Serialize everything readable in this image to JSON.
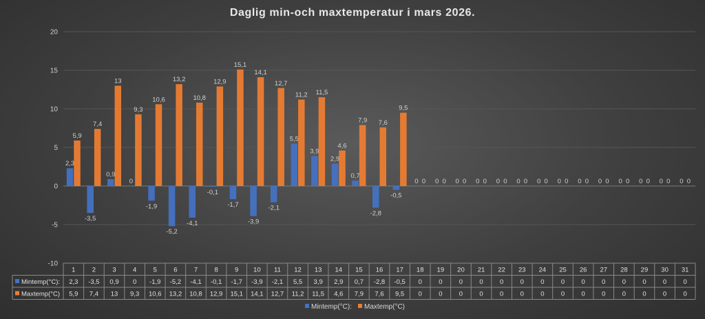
{
  "chart_data": {
    "type": "bar",
    "title": "Daglig min-och maxtemperatur i mars 2026.",
    "categories": [
      "1",
      "2",
      "3",
      "4",
      "5",
      "6",
      "7",
      "8",
      "9",
      "10",
      "11",
      "12",
      "13",
      "14",
      "15",
      "16",
      "17",
      "18",
      "19",
      "20",
      "21",
      "22",
      "23",
      "24",
      "25",
      "26",
      "27",
      "28",
      "29",
      "30",
      "31"
    ],
    "series": [
      {
        "name": "Mintemp(°C):",
        "color": "#4472c4",
        "values": [
          2.3,
          -3.5,
          0.9,
          0,
          -1.9,
          -5.2,
          -4.1,
          -0.1,
          -1.7,
          -3.9,
          -2.1,
          5.5,
          3.9,
          2.9,
          0.7,
          -2.8,
          -0.5,
          0,
          0,
          0,
          0,
          0,
          0,
          0,
          0,
          0,
          0,
          0,
          0,
          0,
          0
        ],
        "labels": [
          "2,3",
          "-3,5",
          "0,9",
          "0",
          "-1,9",
          "-5,2",
          "-4,1",
          "-0,1",
          "-1,7",
          "-3,9",
          "-2,1",
          "5,5",
          "3,9",
          "2,9",
          "0,7",
          "-2,8",
          "-0,5",
          "0",
          "0",
          "0",
          "0",
          "0",
          "0",
          "0",
          "0",
          "0",
          "0",
          "0",
          "0",
          "0",
          "0"
        ]
      },
      {
        "name": "Maxtemp(°C)",
        "color": "#ed7d31",
        "values": [
          5.9,
          7.4,
          13,
          9.3,
          10.6,
          13.2,
          10.8,
          12.9,
          15.1,
          14.1,
          12.7,
          11.2,
          11.5,
          4.6,
          7.9,
          7.6,
          9.5,
          0,
          0,
          0,
          0,
          0,
          0,
          0,
          0,
          0,
          0,
          0,
          0,
          0,
          0
        ],
        "labels": [
          "5,9",
          "7,4",
          "13",
          "9,3",
          "10,6",
          "13,2",
          "10,8",
          "12,9",
          "15,1",
          "14,1",
          "12,7",
          "11,2",
          "11,5",
          "4,6",
          "7,9",
          "7,6",
          "9,5",
          "0",
          "0",
          "0",
          "0",
          "0",
          "0",
          "0",
          "0",
          "0",
          "0",
          "0",
          "0",
          "0",
          "0"
        ]
      }
    ],
    "ylim": [
      -10,
      20
    ],
    "yticks": [
      "-10",
      "-5",
      "0",
      "5",
      "10",
      "15",
      "20"
    ],
    "ytick_values": [
      -10,
      -5,
      0,
      5,
      10,
      15,
      20
    ],
    "grid": true,
    "legend": "bottom",
    "data_table": true
  }
}
